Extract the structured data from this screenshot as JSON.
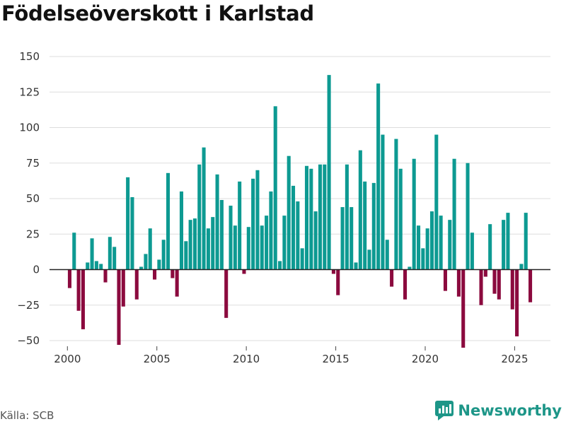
{
  "title": "Födelseöverskott i Karlstad",
  "source": "Källa: SCB",
  "brand": "Newsworthy",
  "colors": {
    "positive": "#0d9a92",
    "negative": "#8b0a3e",
    "grid": "#dddddd",
    "zero": "#222222",
    "brand": "#1d9688"
  },
  "chart_data": {
    "type": "bar",
    "title": "Födelseöverskott i Karlstad",
    "xlabel": "",
    "ylabel": "",
    "x_range": [
      1999.0,
      2027.0
    ],
    "ylim": [
      -60,
      155
    ],
    "yticks": [
      -50,
      -25,
      0,
      25,
      50,
      75,
      100,
      125,
      150
    ],
    "xticks": [
      2000,
      2005,
      2010,
      2015,
      2020,
      2025
    ],
    "bar_width_years": 0.2,
    "start_year": 2000,
    "period": "quarter",
    "values": [
      -13,
      26,
      -29,
      -42,
      5,
      22,
      6,
      4,
      -9,
      23,
      16,
      -53,
      -26,
      65,
      51,
      -21,
      2,
      11,
      29,
      -7,
      7,
      21,
      68,
      -6,
      -19,
      55,
      20,
      35,
      36,
      74,
      86,
      29,
      37,
      67,
      49,
      -34,
      45,
      31,
      62,
      -3,
      30,
      64,
      70,
      31,
      38,
      55,
      115,
      6,
      38,
      80,
      59,
      48,
      15,
      73,
      71,
      41,
      74,
      74,
      137,
      -3,
      -18,
      44,
      74,
      44,
      5,
      84,
      62,
      14,
      61,
      131,
      95,
      21,
      -12,
      92,
      71,
      -21,
      2,
      78,
      31,
      15,
      29,
      41,
      95,
      38,
      -15,
      35,
      78,
      -19,
      -55,
      75,
      26,
      0,
      -25,
      -5,
      32,
      -17,
      -21,
      35,
      40,
      -28,
      -47,
      4,
      40,
      -23
    ]
  }
}
